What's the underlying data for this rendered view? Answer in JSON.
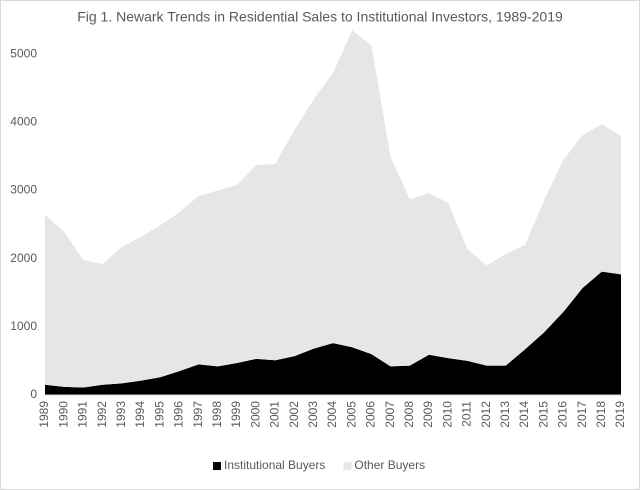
{
  "chart_data": {
    "type": "stacked_area",
    "title": "Fig 1. Newark Trends in Residential Sales to Institutional Investors, 1989-2019",
    "categories": [
      "1989",
      "1990",
      "1991",
      "1992",
      "1993",
      "1994",
      "1995",
      "1996",
      "1997",
      "1998",
      "1999",
      "2000",
      "2001",
      "2002",
      "2003",
      "2004",
      "2005",
      "2006",
      "2007",
      "2008",
      "2009",
      "2010",
      "2011",
      "2012",
      "2013",
      "2014",
      "2015",
      "2016",
      "2017",
      "2018",
      "2019"
    ],
    "series": [
      {
        "name": "Institutional Buyers",
        "color": "#000000",
        "values": [
          150,
          120,
          110,
          150,
          170,
          210,
          260,
          350,
          450,
          420,
          470,
          530,
          510,
          570,
          680,
          760,
          700,
          600,
          420,
          430,
          590,
          540,
          500,
          430,
          430,
          670,
          920,
          1220,
          1570,
          1810,
          1770
        ]
      },
      {
        "name": "Other Buyers",
        "color": "#e7e6e6",
        "values": [
          2490,
          2270,
          1870,
          1770,
          2000,
          2110,
          2230,
          2330,
          2470,
          2580,
          2610,
          2840,
          2880,
          3320,
          3660,
          3960,
          4650,
          4530,
          3070,
          2440,
          2370,
          2280,
          1640,
          1470,
          1640,
          1530,
          1940,
          2230,
          2240,
          2160,
          2030
        ]
      }
    ],
    "ylim": [
      0,
      5500
    ],
    "yticks": [
      0,
      1000,
      2000,
      3000,
      4000,
      5000
    ],
    "legend": "bottom"
  }
}
